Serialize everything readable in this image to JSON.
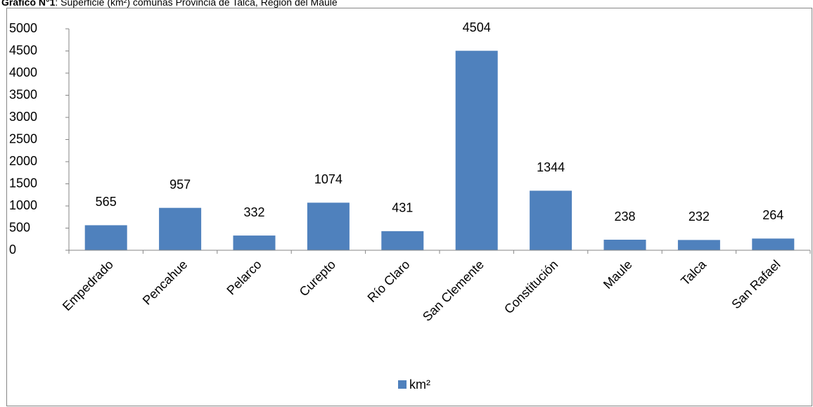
{
  "chart_data": {
    "type": "bar",
    "title_prefix": "Gráfico N°1",
    "title": ": Superficie (km²) comunas Provincia de Talca, Región del Maule",
    "categories": [
      "Empedrado",
      "Pencahue",
      "Pelarco",
      "Curepto",
      "Río Claro",
      "San Clemente",
      "Constitución",
      "Maule",
      "Talca",
      "San Rafael"
    ],
    "series": [
      {
        "name": "km²",
        "color": "#4f81bd",
        "values": [
          565,
          957,
          332,
          1074,
          431,
          4504,
          1344,
          238,
          232,
          264
        ]
      }
    ],
    "ylim": [
      0,
      5000
    ],
    "yticks": [
      0,
      500,
      1000,
      1500,
      2000,
      2500,
      3000,
      3500,
      4000,
      4500,
      5000
    ],
    "grid": false,
    "legend": "bottom"
  }
}
